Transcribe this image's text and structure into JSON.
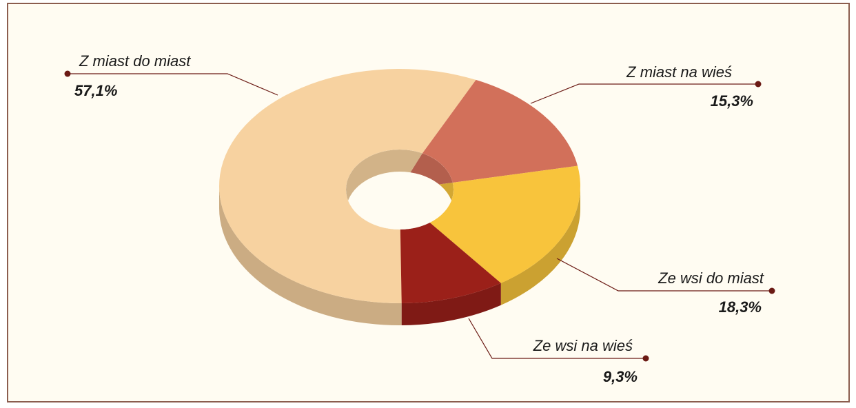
{
  "chart_data": {
    "type": "donut",
    "categories": [
      "Z miast do miast",
      "Z miast na wieś",
      "Ze wsi do miast",
      "Ze wsi na wieś"
    ],
    "values": [
      57.1,
      15.3,
      18.3,
      9.3
    ],
    "value_labels": [
      "57,1%",
      "15,3%",
      "18,3%",
      "9,3%"
    ],
    "colors": [
      "#f7d2a0",
      "#d2705a",
      "#f8c43c",
      "#9b2019"
    ]
  }
}
